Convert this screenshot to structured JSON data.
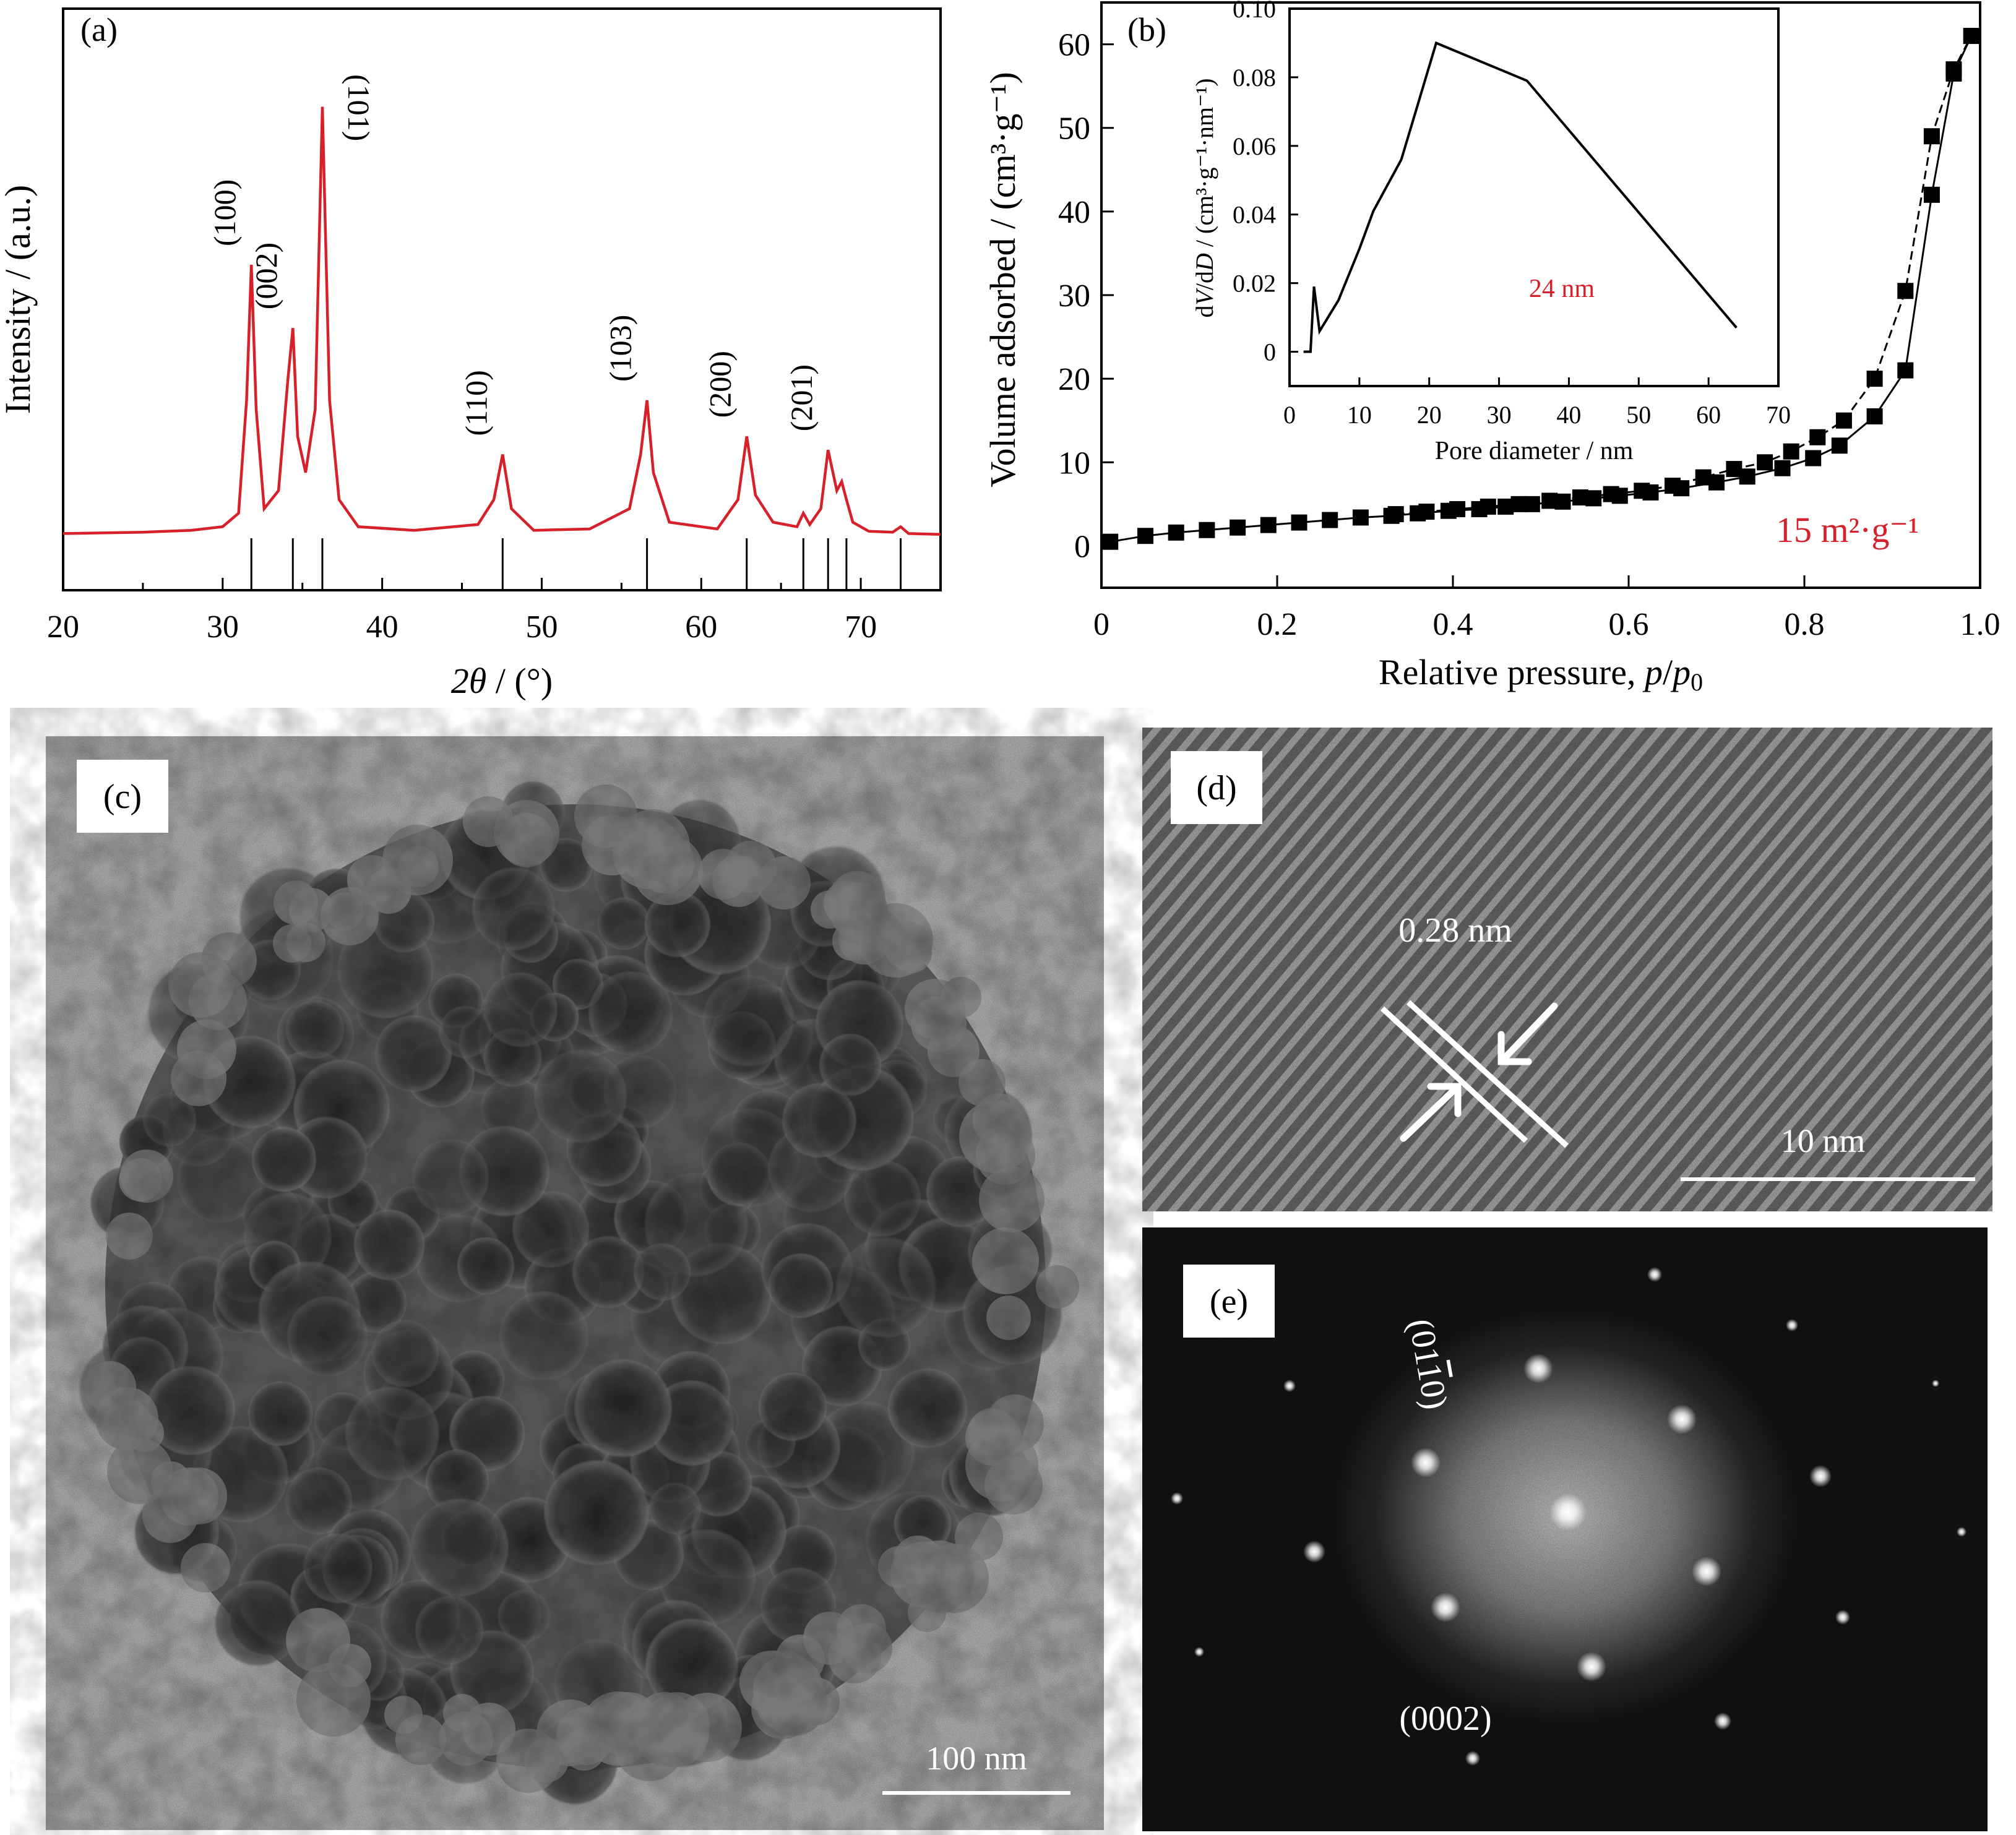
{
  "panels": {
    "a": {
      "label": "(a)",
      "xlabel_italic": "2θ",
      "xlabel_rest": " / (°)",
      "ylabel": "Intensity / (a.u.)",
      "xticks": [
        "20",
        "30",
        "40",
        "50",
        "60",
        "70"
      ],
      "peak_labels": [
        "(100)",
        "(002)",
        "(101)",
        "(110)",
        "(103)",
        "(200)",
        "(201)"
      ],
      "line_color": "#d6202a"
    },
    "b": {
      "label": "(b)",
      "xlabel_main": "Relative pressure, ",
      "xlabel_p": "p",
      "xlabel_slash": "/",
      "xlabel_p0": "p",
      "xlabel_sub0": "0",
      "ylabel": "Volume adsorbed / (cm³·g⁻¹)",
      "xticks": [
        "0",
        "0.2",
        "0.4",
        "0.6",
        "0.8",
        "1.0"
      ],
      "yticks": [
        "0",
        "10",
        "20",
        "30",
        "40",
        "50",
        "60"
      ],
      "surface_area": "15 m²·g⁻¹",
      "annotation_color": "#d6202a",
      "inset": {
        "xlabel": "Pore diameter / nm",
        "ylabel_d1": "d",
        "ylabel_V": "V",
        "ylabel_d2": "/d",
        "ylabel_D": "D",
        "ylabel_rest": " / (cm³·g⁻¹·nm⁻¹)",
        "xticks": [
          "0",
          "10",
          "20",
          "30",
          "40",
          "50",
          "60",
          "70"
        ],
        "yticks": [
          "0",
          "0.02",
          "0.04",
          "0.06",
          "0.08",
          "0.10"
        ],
        "peak_annotation": "24 nm"
      }
    },
    "c": {
      "label": "(c)",
      "scale_bar": "100 nm"
    },
    "d": {
      "label": "(d)",
      "spacing": "0.28 nm",
      "scale_bar": "10 nm"
    },
    "e": {
      "label": "(e)",
      "spot_label_1": "(01",
      "spot_label_1_bar": "1",
      "spot_label_1_end": "0)",
      "spot_label_2": "(0002)"
    }
  },
  "chart_data": [
    {
      "type": "line",
      "panel": "a",
      "title": "",
      "xlabel": "2θ / (°)",
      "ylabel": "Intensity / (a.u.)",
      "xlim": [
        20,
        75
      ],
      "series": [
        {
          "x": [
            20,
            25,
            28,
            30,
            31,
            31.5,
            31.8,
            32.1,
            32.6,
            33.5,
            34.1,
            34.4,
            34.7,
            35.2,
            35.8,
            36.25,
            36.7,
            37.3,
            38.5,
            42,
            46,
            47.0,
            47.55,
            48.1,
            49.5,
            53,
            55.5,
            56.2,
            56.6,
            57.0,
            58.0,
            61,
            62.3,
            62.85,
            63.4,
            64.5,
            66.0,
            66.4,
            66.8,
            67.5,
            67.95,
            68.5,
            68.8,
            69.1,
            69.5,
            70.5,
            72.0,
            72.5,
            73.0,
            75
          ],
          "y": [
            0.5,
            0.8,
            1.2,
            2,
            5,
            30,
            60,
            28,
            6,
            10,
            35,
            46,
            22,
            14,
            28,
            95,
            30,
            8,
            2,
            1.2,
            2.5,
            8,
            18,
            6,
            1.2,
            1.5,
            6,
            18,
            30,
            14,
            3,
            1.5,
            8,
            22,
            9,
            3,
            2,
            5,
            2.5,
            6,
            19,
            10,
            12,
            8,
            3,
            1,
            0.8,
            2,
            0.5,
            0.3
          ]
        }
      ],
      "peak_labels": [
        {
          "text": "(100)",
          "x": 31.8
        },
        {
          "text": "(002)",
          "x": 34.4
        },
        {
          "text": "(101)",
          "x": 36.25
        },
        {
          "text": "(110)",
          "x": 47.55
        },
        {
          "text": "(103)",
          "x": 56.6
        },
        {
          "text": "(200)",
          "x": 62.85
        },
        {
          "text": "(201)",
          "x": 67.95
        }
      ],
      "reference_lines_x": [
        31.8,
        34.4,
        36.25,
        47.55,
        56.6,
        62.85,
        66.4,
        67.95,
        69.1,
        72.5
      ],
      "grid": false
    },
    {
      "type": "line",
      "panel": "b",
      "title": "",
      "xlabel": "Relative pressure, p/p0",
      "ylabel": "Volume adsorbed / (cm³·g⁻¹)",
      "xlim": [
        0,
        1.0
      ],
      "ylim": [
        -5,
        65
      ],
      "series": [
        {
          "marker": "square",
          "x": [
            0.01,
            0.05,
            0.085,
            0.12,
            0.155,
            0.19,
            0.225,
            0.26,
            0.295,
            0.33,
            0.36,
            0.395,
            0.43,
            0.46,
            0.49,
            0.525,
            0.56,
            0.59,
            0.625,
            0.66,
            0.7,
            0.735,
            0.775,
            0.81,
            0.84,
            0.88,
            0.915,
            0.945,
            0.97,
            0.99
          ],
          "y": [
            0.5,
            1.2,
            1.6,
            1.9,
            2.2,
            2.5,
            2.8,
            3.1,
            3.4,
            3.6,
            3.9,
            4.2,
            4.4,
            4.7,
            5.0,
            5.3,
            5.7,
            6.0,
            6.4,
            6.9,
            7.6,
            8.3,
            9.3,
            10.5,
            12.0,
            15.5,
            21.0,
            42.0,
            56.5,
            61.0
          ]
        },
        {
          "marker": "square",
          "x": [
            0.335,
            0.37,
            0.405,
            0.44,
            0.475,
            0.51,
            0.545,
            0.58,
            0.615,
            0.65,
            0.685,
            0.72,
            0.755,
            0.785,
            0.815,
            0.845,
            0.88,
            0.915,
            0.945,
            0.97,
            0.99
          ],
          "y": [
            3.8,
            4.1,
            4.4,
            4.7,
            5.0,
            5.4,
            5.8,
            6.2,
            6.6,
            7.2,
            8.2,
            9.2,
            10.0,
            11.3,
            13.0,
            15.0,
            20.0,
            30.5,
            49.0,
            57.0,
            61.0
          ]
        }
      ],
      "annotations": [
        "15 m²·g⁻¹"
      ],
      "grid": false
    },
    {
      "type": "line",
      "panel": "b-inset",
      "title": "",
      "xlabel": "Pore diameter / nm",
      "ylabel": "dV/dD / (cm³·g⁻¹·nm⁻¹)",
      "xlim": [
        0,
        70
      ],
      "ylim": [
        -0.01,
        0.1
      ],
      "series": [
        {
          "x": [
            2,
            3,
            3.5,
            4.3,
            7,
            10,
            12,
            16,
            21,
            34,
            64
          ],
          "y": [
            0,
            0,
            0.019,
            0.006,
            0.015,
            0.03,
            0.041,
            0.056,
            0.09,
            0.079,
            0.007
          ]
        }
      ],
      "annotations": [
        "24 nm"
      ],
      "grid": false
    }
  ]
}
